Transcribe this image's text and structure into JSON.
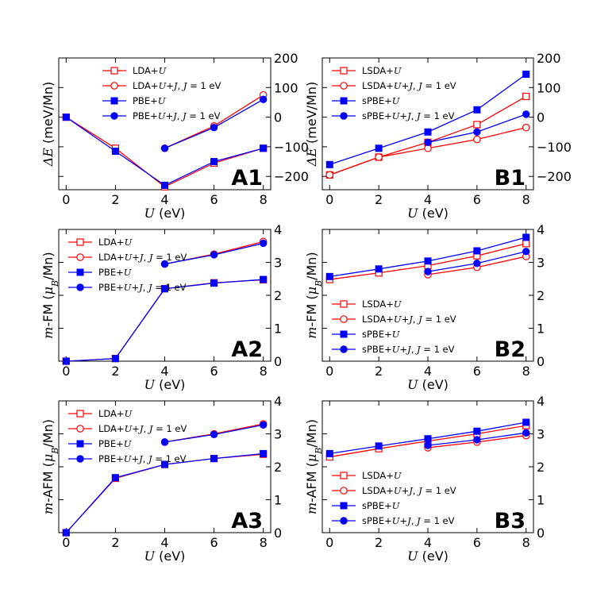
{
  "chart_data": [
    {
      "id": "A1",
      "panel_label": "A1",
      "type": "line",
      "xlabel": {
        "italic": "U",
        "rest": " (eV)"
      },
      "ylabel": {
        "italic": "ΔE",
        "rest": " (meV/Mn)"
      },
      "xlim": [
        -0.3,
        8.3
      ],
      "ylim": [
        -245,
        200
      ],
      "xticks": [
        0,
        2,
        4,
        6,
        8
      ],
      "yticks": [
        -200,
        -100,
        0,
        100,
        200
      ],
      "ytick_labels": [
        "−200",
        "−100",
        "0",
        "100",
        "200"
      ],
      "legend_position": "upper-center",
      "series": [
        {
          "name": "LDA+U",
          "color": "#ff0000",
          "marker": "square-open",
          "x": [
            0,
            2,
            4,
            6,
            8
          ],
          "y": [
            0,
            -105,
            -235,
            -155,
            -105
          ]
        },
        {
          "name": "LDA+U+J, J = 1 eV",
          "color": "#ff0000",
          "marker": "circle-open",
          "x": [
            4,
            6,
            8
          ],
          "y": [
            -105,
            -30,
            75
          ]
        },
        {
          "name": "PBE+U",
          "color": "#0000ff",
          "marker": "square-filled",
          "x": [
            0,
            2,
            4,
            6,
            8
          ],
          "y": [
            0,
            -115,
            -230,
            -150,
            -105
          ]
        },
        {
          "name": "PBE+U+J, J = 1 eV",
          "color": "#0000ff",
          "marker": "circle-filled",
          "x": [
            4,
            6,
            8
          ],
          "y": [
            -105,
            -35,
            60
          ]
        }
      ],
      "legend": [
        {
          "base": "LDA+",
          "var": "U",
          "tail": ""
        },
        {
          "base": "LDA+",
          "var": "U",
          "mid": "+",
          "var2": "J",
          "mid2": ", ",
          "var3": "J",
          "tail": " = 1 eV"
        },
        {
          "base": "PBE+",
          "var": "U",
          "tail": ""
        },
        {
          "base": "PBE+",
          "var": "U",
          "mid": "+",
          "var2": "J",
          "mid2": ", ",
          "var3": "J",
          "tail": " = 1 eV"
        }
      ]
    },
    {
      "id": "B1",
      "panel_label": "B1",
      "type": "line",
      "xlabel": {
        "italic": "U",
        "rest": " (eV)"
      },
      "ylabel": {
        "italic": "ΔE",
        "rest": " (meV/Mn)"
      },
      "xlim": [
        -0.3,
        8.3
      ],
      "ylim": [
        -245,
        200
      ],
      "xticks": [
        0,
        2,
        4,
        6,
        8
      ],
      "yticks": [
        -200,
        -100,
        0,
        100,
        200
      ],
      "ytick_labels": [
        "−200",
        "−100",
        "0",
        "100",
        "200"
      ],
      "legend_position": "upper-left",
      "series": [
        {
          "name": "LSDA+U",
          "color": "#ff0000",
          "marker": "square-open",
          "x": [
            0,
            2,
            4,
            6,
            8
          ],
          "y": [
            -195,
            -135,
            -85,
            -25,
            70
          ]
        },
        {
          "name": "LSDA+U+J, J = 1 eV",
          "color": "#ff0000",
          "marker": "circle-open",
          "x": [
            0,
            2,
            4,
            6,
            8
          ],
          "y": [
            -195,
            -135,
            -105,
            -75,
            -35
          ]
        },
        {
          "name": "sPBE+U",
          "color": "#0000ff",
          "marker": "square-filled",
          "x": [
            0,
            2,
            4,
            6,
            8
          ],
          "y": [
            -160,
            -105,
            -50,
            25,
            145
          ]
        },
        {
          "name": "sPBE+U+J, J = 1 eV",
          "color": "#0000ff",
          "marker": "circle-filled",
          "x": [
            4,
            6,
            8
          ],
          "y": [
            -85,
            -50,
            10
          ]
        }
      ],
      "legend": [
        {
          "base": "LSDA+",
          "var": "U",
          "tail": ""
        },
        {
          "base": "LSDA+",
          "var": "U",
          "mid": "+",
          "var2": "J",
          "mid2": ", ",
          "var3": "J",
          "tail": " = 1 eV"
        },
        {
          "base": "sPBE+",
          "var": "U",
          "tail": ""
        },
        {
          "base": "sPBE+",
          "var": "U",
          "mid": "+",
          "var2": "J",
          "mid2": ", ",
          "var3": "J",
          "tail": " = 1 eV"
        }
      ]
    },
    {
      "id": "A2",
      "panel_label": "A2",
      "type": "line",
      "xlabel": {
        "italic": "U",
        "rest": " (eV)"
      },
      "ylabel": {
        "italic": "m",
        "rest": "-FM (",
        "italic2": "μ",
        "sub": "B",
        "rest2": "/Mn)"
      },
      "xlim": [
        -0.3,
        8.3
      ],
      "ylim": [
        0,
        4
      ],
      "xticks": [
        0,
        2,
        4,
        6,
        8
      ],
      "yticks": [
        0,
        1,
        2,
        3,
        4
      ],
      "ytick_labels": [
        "0",
        "1",
        "2",
        "3",
        "4"
      ],
      "legend_position": "upper-left",
      "series": [
        {
          "name": "LDA+U",
          "color": "#ff0000",
          "marker": "square-open",
          "x": [
            0,
            2,
            4,
            6,
            8
          ],
          "y": [
            0.0,
            0.08,
            2.2,
            2.38,
            2.47
          ]
        },
        {
          "name": "LDA+U+J, J = 1 eV",
          "color": "#ff0000",
          "marker": "circle-open",
          "x": [
            4,
            6,
            8
          ],
          "y": [
            2.95,
            3.25,
            3.63
          ]
        },
        {
          "name": "PBE+U",
          "color": "#0000ff",
          "marker": "square-filled",
          "x": [
            0,
            2,
            4,
            6,
            8
          ],
          "y": [
            0.0,
            0.08,
            2.2,
            2.37,
            2.48
          ]
        },
        {
          "name": "PBE+U+J, J = 1 eV",
          "color": "#0000ff",
          "marker": "circle-filled",
          "x": [
            4,
            6,
            8
          ],
          "y": [
            2.95,
            3.23,
            3.58
          ]
        }
      ],
      "legend": [
        {
          "base": "LDA+",
          "var": "U",
          "tail": ""
        },
        {
          "base": "LDA+",
          "var": "U",
          "mid": "+",
          "var2": "J",
          "mid2": ", ",
          "var3": "J",
          "tail": " = 1 eV"
        },
        {
          "base": "PBE+",
          "var": "U",
          "tail": ""
        },
        {
          "base": "PBE+",
          "var": "U",
          "mid": "+",
          "var2": "J",
          "mid2": ", ",
          "var3": "J",
          "tail": " = 1 eV"
        }
      ]
    },
    {
      "id": "B2",
      "panel_label": "B2",
      "type": "line",
      "xlabel": {
        "italic": "U",
        "rest": " (eV)"
      },
      "ylabel": {
        "italic": "m",
        "rest": "-FM (",
        "italic2": "μ",
        "sub": "B",
        "rest2": "/Mn)"
      },
      "xlim": [
        -0.3,
        8.3
      ],
      "ylim": [
        0,
        4
      ],
      "xticks": [
        0,
        2,
        4,
        6,
        8
      ],
      "yticks": [
        0,
        1,
        2,
        3,
        4
      ],
      "ytick_labels": [
        "0",
        "1",
        "2",
        "3",
        "4"
      ],
      "legend_position": "lower-left",
      "series": [
        {
          "name": "LSDA+U",
          "color": "#ff0000",
          "marker": "square-open",
          "x": [
            0,
            2,
            4,
            6,
            8
          ],
          "y": [
            2.48,
            2.68,
            2.9,
            3.2,
            3.57
          ]
        },
        {
          "name": "LSDA+U+J, J = 1 eV",
          "color": "#ff0000",
          "marker": "circle-open",
          "x": [
            4,
            6,
            8
          ],
          "y": [
            2.63,
            2.85,
            3.18
          ]
        },
        {
          "name": "sPBE+U",
          "color": "#0000ff",
          "marker": "square-filled",
          "x": [
            0,
            2,
            4,
            6,
            8
          ],
          "y": [
            2.57,
            2.8,
            3.04,
            3.35,
            3.76
          ]
        },
        {
          "name": "sPBE+U+J, J = 1 eV",
          "color": "#0000ff",
          "marker": "circle-filled",
          "x": [
            4,
            6,
            8
          ],
          "y": [
            2.72,
            2.97,
            3.33
          ]
        }
      ],
      "legend": [
        {
          "base": "LSDA+",
          "var": "U",
          "tail": ""
        },
        {
          "base": "LSDA+",
          "var": "U",
          "mid": "+",
          "var2": "J",
          "mid2": ", ",
          "var3": "J",
          "tail": " = 1 eV"
        },
        {
          "base": "sPBE+",
          "var": "U",
          "tail": ""
        },
        {
          "base": "sPBE+",
          "var": "U",
          "mid": "+",
          "var2": "J",
          "mid2": ", ",
          "var3": "J",
          "tail": " = 1 eV"
        }
      ]
    },
    {
      "id": "A3",
      "panel_label": "A3",
      "type": "line",
      "xlabel": {
        "italic": "U",
        "rest": " (eV)"
      },
      "ylabel": {
        "italic": "m",
        "rest": "-AFM (",
        "italic2": "μ",
        "sub": "B",
        "rest2": "/Mn)"
      },
      "xlim": [
        -0.3,
        8.3
      ],
      "ylim": [
        0,
        4
      ],
      "xticks": [
        0,
        2,
        4,
        6,
        8
      ],
      "yticks": [
        0,
        1,
        2,
        3,
        4
      ],
      "ytick_labels": [
        "0",
        "1",
        "2",
        "3",
        "4"
      ],
      "legend_position": "upper-left",
      "series": [
        {
          "name": "LDA+U",
          "color": "#ff0000",
          "marker": "square-open",
          "x": [
            0,
            2,
            4,
            6,
            8
          ],
          "y": [
            0.0,
            1.65,
            2.07,
            2.25,
            2.38
          ]
        },
        {
          "name": "LDA+U+J, J = 1 eV",
          "color": "#ff0000",
          "marker": "circle-open",
          "x": [
            4,
            6,
            8
          ],
          "y": [
            2.75,
            3.0,
            3.3
          ]
        },
        {
          "name": "PBE+U",
          "color": "#0000ff",
          "marker": "square-filled",
          "x": [
            0,
            2,
            4,
            6,
            8
          ],
          "y": [
            0.0,
            1.67,
            2.07,
            2.25,
            2.4
          ]
        },
        {
          "name": "PBE+U+J, J = 1 eV",
          "color": "#0000ff",
          "marker": "circle-filled",
          "x": [
            4,
            6,
            8
          ],
          "y": [
            2.75,
            2.98,
            3.27
          ]
        }
      ],
      "legend": [
        {
          "base": "LDA+",
          "var": "U",
          "tail": ""
        },
        {
          "base": "LDA+",
          "var": "U",
          "mid": "+",
          "var2": "J",
          "mid2": ", ",
          "var3": "J",
          "tail": " = 1 eV"
        },
        {
          "base": "PBE+",
          "var": "U",
          "tail": ""
        },
        {
          "base": "PBE+",
          "var": "U",
          "mid": "+",
          "var2": "J",
          "mid2": ", ",
          "var3": "J",
          "tail": " = 1 eV"
        }
      ]
    },
    {
      "id": "B3",
      "panel_label": "B3",
      "type": "line",
      "xlabel": {
        "italic": "U",
        "rest": " (eV)"
      },
      "ylabel": {
        "italic": "m",
        "rest": "-AFM (",
        "italic2": "μ",
        "sub": "B",
        "rest2": "/Mn)"
      },
      "xlim": [
        -0.3,
        8.3
      ],
      "ylim": [
        0,
        4
      ],
      "xticks": [
        0,
        2,
        4,
        6,
        8
      ],
      "yticks": [
        0,
        1,
        2,
        3,
        4
      ],
      "ytick_labels": [
        "0",
        "1",
        "2",
        "3",
        "4"
      ],
      "legend_position": "lower-left",
      "series": [
        {
          "name": "LSDA+U",
          "color": "#ff0000",
          "marker": "square-open",
          "x": [
            0,
            2,
            4,
            6,
            8
          ],
          "y": [
            2.3,
            2.55,
            2.78,
            3.0,
            3.25
          ]
        },
        {
          "name": "LSDA+U+J, J = 1 eV",
          "color": "#ff0000",
          "marker": "circle-open",
          "x": [
            4,
            6,
            8
          ],
          "y": [
            2.58,
            2.75,
            2.95
          ]
        },
        {
          "name": "sPBE+U",
          "color": "#0000ff",
          "marker": "square-filled",
          "x": [
            0,
            2,
            4,
            6,
            8
          ],
          "y": [
            2.4,
            2.63,
            2.85,
            3.08,
            3.35
          ]
        },
        {
          "name": "sPBE+U+J, J = 1 eV",
          "color": "#0000ff",
          "marker": "circle-filled",
          "x": [
            4,
            6,
            8
          ],
          "y": [
            2.65,
            2.82,
            3.03
          ]
        }
      ],
      "legend": [
        {
          "base": "LSDA+",
          "var": "U",
          "tail": ""
        },
        {
          "base": "LSDA+",
          "var": "U",
          "mid": "+",
          "var2": "J",
          "mid2": ", ",
          "var3": "J",
          "tail": " = 1 eV"
        },
        {
          "base": "sPBE+",
          "var": "U",
          "tail": ""
        },
        {
          "base": "sPBE+",
          "var": "U",
          "mid": "+",
          "var2": "J",
          "mid2": ", ",
          "var3": "J",
          "tail": " = 1 eV"
        }
      ]
    }
  ]
}
